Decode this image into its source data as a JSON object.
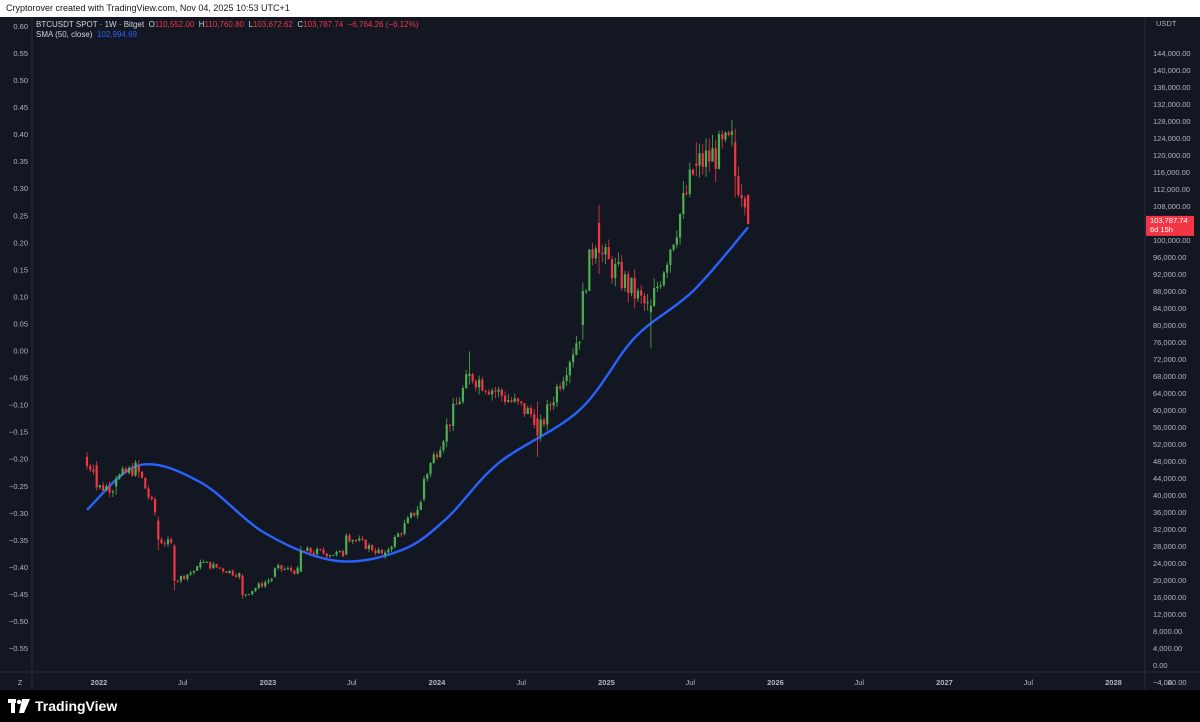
{
  "header": {
    "created_text": "Cryptorover created with TradingView.com, Nov 04, 2025 10:53 UTC+1"
  },
  "legend": {
    "symbol": "BTCUSDT SPOT · 1W · Bitget",
    "o_label": "O",
    "o_value": "110,552.00",
    "h_label": "H",
    "h_value": "110,760.80",
    "l_label": "L",
    "l_value": "103,672.62",
    "c_label": "C",
    "c_value": "103,787.74",
    "change": "−6,764.26 (−6.12%)",
    "sma_label": "SMA (50, close)",
    "sma_value": "102,994.69"
  },
  "price_axis": {
    "currency": "USDT",
    "labels": [
      "144,000.00",
      "140,000.00",
      "136,000.00",
      "132,000.00",
      "128,000.00",
      "124,000.00",
      "120,000.00",
      "116,000.00",
      "112,000.00",
      "108,000.00",
      "100,000.00",
      "96,000.00",
      "92,000.00",
      "88,000.00",
      "84,000.00",
      "80,000.00",
      "76,000.00",
      "72,000.00",
      "68,000.00",
      "64,000.00",
      "60,000.00",
      "56,000.00",
      "52,000.00",
      "48,000.00",
      "44,000.00",
      "40,000.00",
      "36,000.00",
      "32,000.00",
      "28,000.00",
      "24,000.00",
      "20,000.00",
      "16,000.00",
      "12,000.00",
      "8,000.00",
      "4,000.00",
      "0.00",
      "−4,000.00"
    ],
    "current_price": "103,787.74",
    "countdown": "6d 15h"
  },
  "left_axis": {
    "labels": [
      "0.60",
      "0.55",
      "0.50",
      "0.45",
      "0.40",
      "0.35",
      "0.30",
      "0.25",
      "0.20",
      "0.15",
      "0.10",
      "0.05",
      "0.00",
      "−0.05",
      "−0.10",
      "−0.15",
      "−0.20",
      "−0.25",
      "−0.30",
      "−0.35",
      "−0.40",
      "−0.45",
      "−0.50",
      "−0.55"
    ]
  },
  "time_axis": {
    "labels": [
      "2022",
      "Jul",
      "2023",
      "Jul",
      "2024",
      "Jul",
      "2025",
      "Jul",
      "2026",
      "Jul",
      "2027",
      "Jul",
      "2028"
    ]
  },
  "corner_buttons": {
    "left": "Z",
    "right": "A"
  },
  "brand": {
    "name": "TradingView"
  },
  "colors": {
    "up": "#26a69a",
    "up_green": "#4caf50",
    "down": "#f23645",
    "sma": "#2962ff",
    "bg": "#131722"
  },
  "chart_data": {
    "type": "candlestick",
    "title": "BTCUSDT SPOT · 1W · Bitget",
    "interval": "1W",
    "ylim": [
      -4000,
      148000
    ],
    "y2lim": [
      -0.55,
      0.6
    ],
    "grid": false,
    "series": [
      {
        "name": "BTCUSDT",
        "points": [
          [
            "2021-12-06",
            49000,
            50000,
            46000,
            46800
          ],
          [
            "2021-12-27",
            47000,
            48000,
            41000,
            41800
          ],
          [
            "2022-02-07",
            42000,
            44500,
            40000,
            43800
          ],
          [
            "2022-03-28",
            46800,
            48200,
            44000,
            45500
          ],
          [
            "2022-05-09",
            34000,
            35000,
            27000,
            29500
          ],
          [
            "2022-06-13",
            28000,
            28500,
            17600,
            19800
          ],
          [
            "2022-08-08",
            23000,
            24800,
            22500,
            24200
          ],
          [
            "2022-11-07",
            21000,
            21400,
            15600,
            16400
          ],
          [
            "2023-01-16",
            20800,
            23000,
            20500,
            22800
          ],
          [
            "2023-03-13",
            22000,
            28000,
            21800,
            26800
          ],
          [
            "2023-06-19",
            26000,
            31000,
            25800,
            30500
          ],
          [
            "2023-09-11",
            25800,
            27000,
            25000,
            26500
          ],
          [
            "2023-12-04",
            39000,
            44500,
            38500,
            43800
          ],
          [
            "2024-03-11",
            68000,
            73800,
            66000,
            68500
          ],
          [
            "2024-08-05",
            58000,
            62000,
            49000,
            54000
          ],
          [
            "2024-11-11",
            80000,
            90000,
            76500,
            88000
          ],
          [
            "2024-12-16",
            104000,
            108300,
            92000,
            97000
          ],
          [
            "2025-04-07",
            83000,
            86000,
            74500,
            84500
          ],
          [
            "2025-07-14",
            118000,
            123000,
            115000,
            117500
          ],
          [
            "2025-10-06",
            123000,
            126200,
            110000,
            115000
          ],
          [
            "2025-11-03",
            110552,
            110760.8,
            103672.62,
            103787.74
          ]
        ]
      },
      {
        "name": "SMA (50, close)",
        "points": [
          [
            "2021-12-06",
            36500
          ],
          [
            "2022-03-28",
            47000
          ],
          [
            "2022-08-08",
            43000
          ],
          [
            "2022-12-26",
            31000
          ],
          [
            "2023-05-29",
            24500
          ],
          [
            "2023-10-16",
            27000
          ],
          [
            "2024-01-22",
            34500
          ],
          [
            "2024-05-13",
            47500
          ],
          [
            "2024-11-04",
            60000
          ],
          [
            "2025-03-03",
            77000
          ],
          [
            "2025-07-07",
            88000
          ],
          [
            "2025-11-03",
            102994.69
          ]
        ]
      }
    ]
  }
}
